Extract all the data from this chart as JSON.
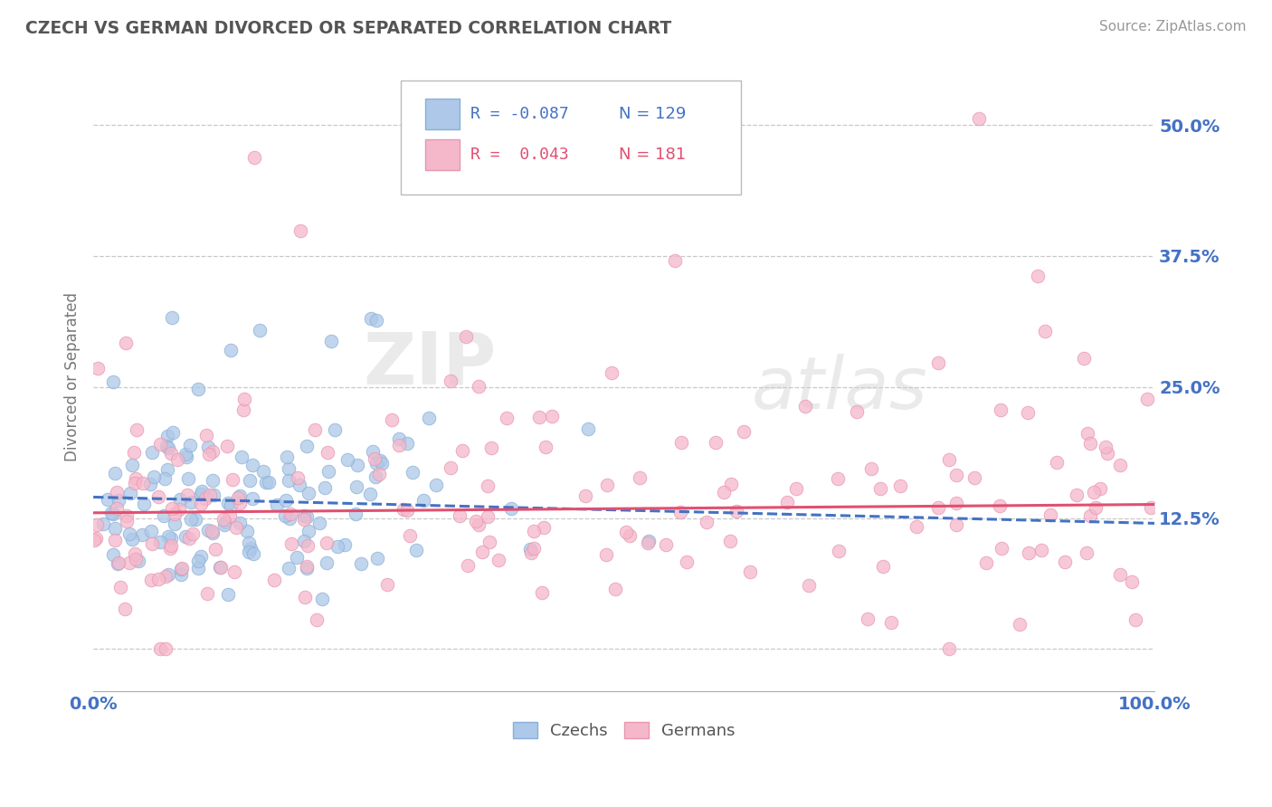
{
  "title": "CZECH VS GERMAN DIVORCED OR SEPARATED CORRELATION CHART",
  "source": "Source: ZipAtlas.com",
  "ylabel": "Divorced or Separated",
  "xlim": [
    0,
    1
  ],
  "ylim": [
    -0.04,
    0.56
  ],
  "yticks": [
    0.0,
    0.125,
    0.25,
    0.375,
    0.5
  ],
  "ytick_labels": [
    "",
    "12.5%",
    "25.0%",
    "37.5%",
    "50.0%"
  ],
  "xticks": [
    0.0,
    1.0
  ],
  "xtick_labels": [
    "0.0%",
    "100.0%"
  ],
  "czech_color": "#adc8e8",
  "german_color": "#f5b8cb",
  "czech_edge": "#88b0d8",
  "german_edge": "#e896ae",
  "trend_czech_color": "#4472c4",
  "trend_german_color": "#e05070",
  "legend_R_czech": "R = -0.087",
  "legend_N_czech": "N = 129",
  "legend_R_german": "R =  0.043",
  "legend_N_german": "N = 181",
  "background_color": "#ffffff",
  "grid_color": "#c8c8c8",
  "watermark_zip": "ZIP",
  "watermark_atlas": "atlas",
  "title_color": "#555555",
  "axis_label_color": "#4472c4",
  "ytick_color": "#4472c4",
  "n_czech": 129,
  "n_german": 181
}
